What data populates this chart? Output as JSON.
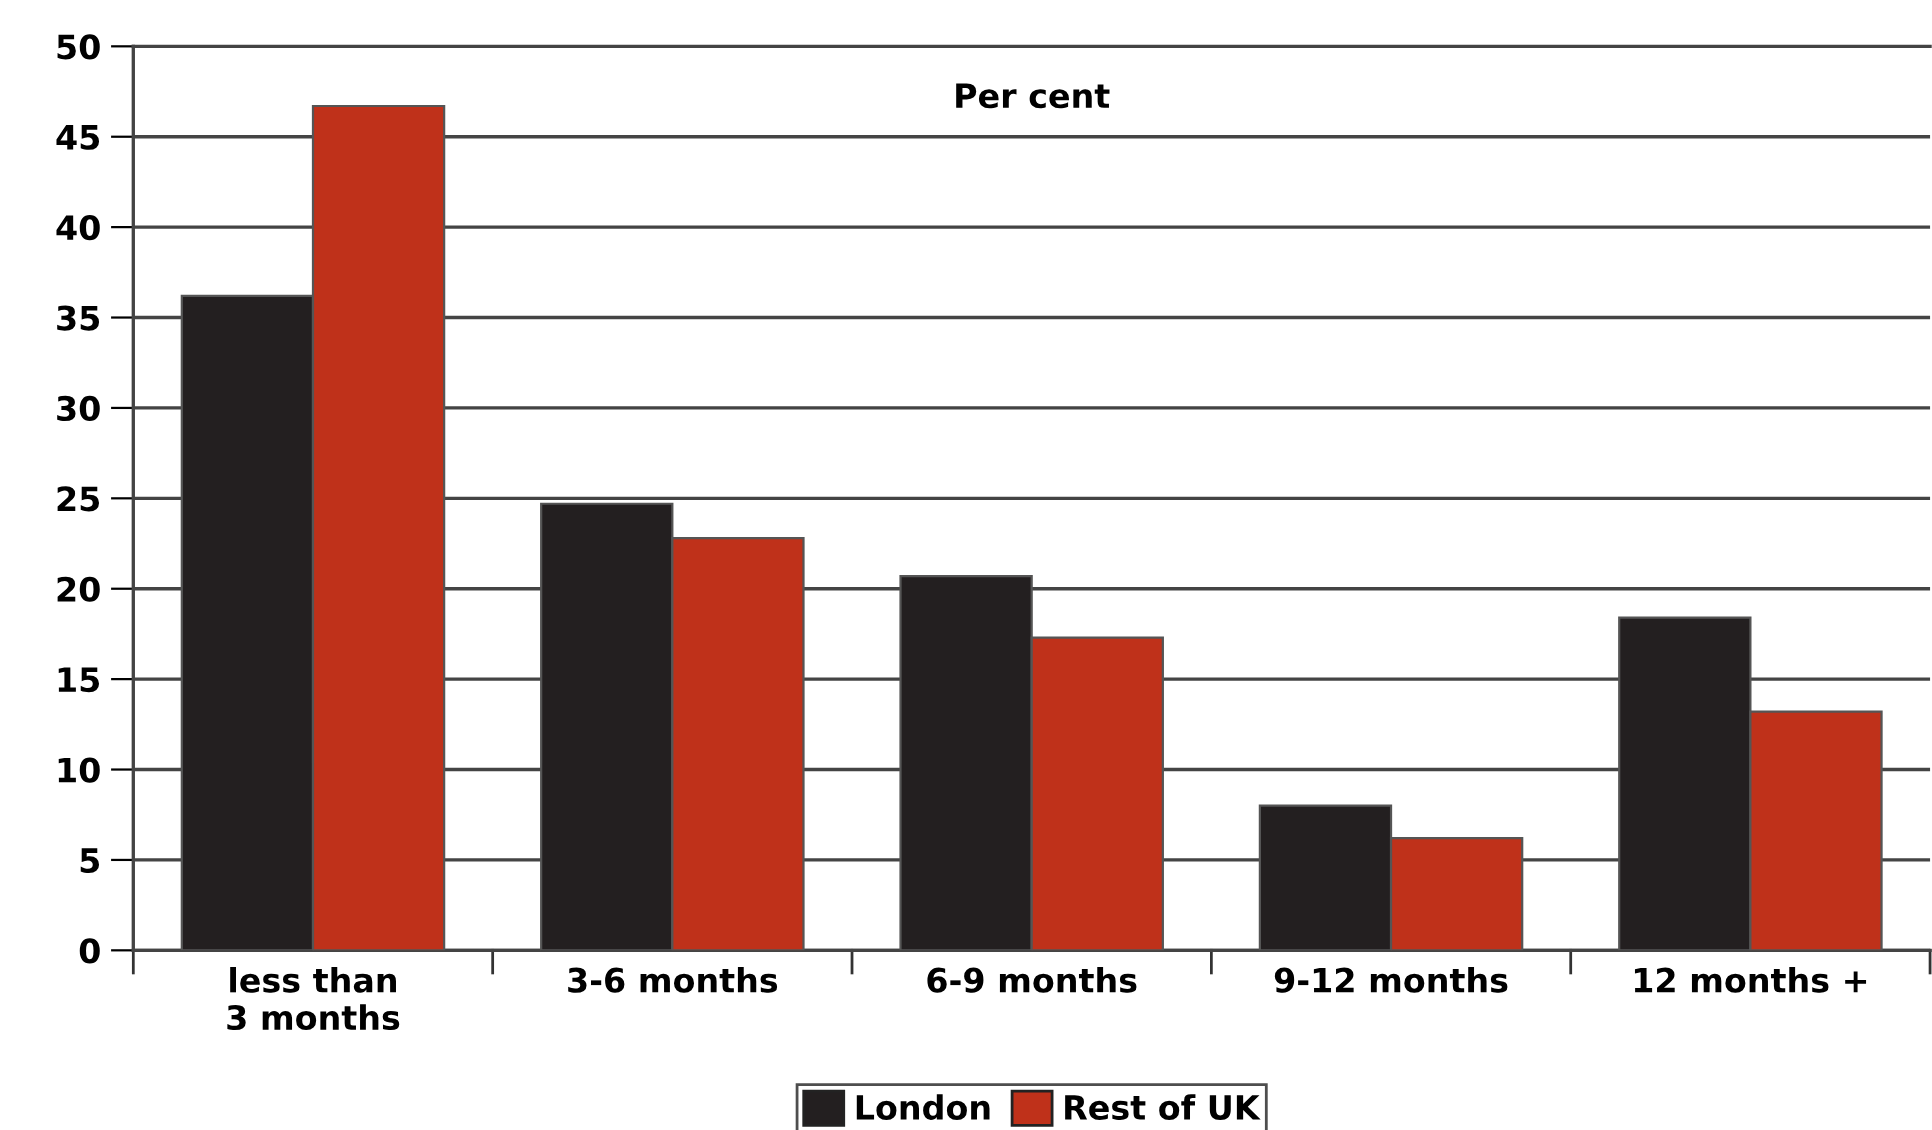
{
  "chart_data": {
    "type": "bar",
    "categories": [
      "less than\n3 months",
      "3-6 months",
      "6-9 months",
      "9-12 months",
      "12 months +"
    ],
    "series": [
      {
        "name": "London",
        "color": "#231f20",
        "values": [
          36.2,
          24.7,
          20.7,
          8.0,
          18.4
        ]
      },
      {
        "name": "Rest of UK",
        "color": "#bf311a",
        "values": [
          46.7,
          22.8,
          17.3,
          6.2,
          13.2
        ]
      }
    ],
    "ylim": [
      0,
      50
    ],
    "yticks": [
      0,
      5,
      10,
      15,
      20,
      25,
      30,
      35,
      40,
      45,
      50
    ],
    "grid": "y",
    "legend": "bottom",
    "annotations": [
      "Per cent"
    ]
  }
}
